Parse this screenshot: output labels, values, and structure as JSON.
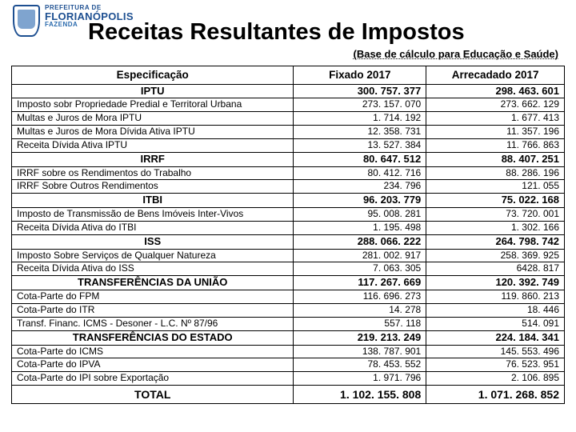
{
  "logo": {
    "line1": "PREFEITURA DE",
    "line2": "FLORIANÓPOLIS",
    "line3": "FAZENDA"
  },
  "title": "Receitas Resultantes de Impostos",
  "subtitle": "(Base de cálculo para Educação e Saúde)",
  "columns": [
    "Especificação",
    "Fixado 2017",
    "Arrecadado 2017"
  ],
  "rows": [
    {
      "t": "group",
      "desc": "IPTU",
      "v1": "300. 757. 377",
      "v2": "298. 463. 601"
    },
    {
      "t": "detail",
      "desc": "Imposto sobr Propriedade Predial e Territoral Urbana",
      "v1": "273. 157. 070",
      "v2": "273. 662. 129"
    },
    {
      "t": "detail",
      "desc": "Multas e Juros de Mora IPTU",
      "v1": "1. 714. 192",
      "v2": "1. 677. 413"
    },
    {
      "t": "detail",
      "desc": "Multas e Juros de Mora Dívida Ativa IPTU",
      "v1": "12. 358. 731",
      "v2": "11. 357. 196"
    },
    {
      "t": "detail",
      "desc": "Receita Dívida Ativa IPTU",
      "v1": "13. 527. 384",
      "v2": "11. 766. 863"
    },
    {
      "t": "group",
      "desc": "IRRF",
      "v1": "80. 647. 512",
      "v2": "88. 407. 251"
    },
    {
      "t": "detail",
      "desc": "IRRF sobre os Rendimentos do Trabalho",
      "v1": "80. 412. 716",
      "v2": "88. 286. 196"
    },
    {
      "t": "detail",
      "desc": "IRRF Sobre Outros Rendimentos",
      "v1": "234. 796",
      "v2": "121. 055"
    },
    {
      "t": "group",
      "desc": "ITBI",
      "v1": "96. 203. 779",
      "v2": "75. 022. 168"
    },
    {
      "t": "detail",
      "desc": "Imposto de Transmissão de Bens Imóveis Inter-Vivos",
      "v1": "95. 008. 281",
      "v2": "73. 720. 001"
    },
    {
      "t": "detail",
      "desc": "Receita Dívida Ativa do ITBI",
      "v1": "1. 195. 498",
      "v2": "1. 302. 166"
    },
    {
      "t": "group",
      "desc": "ISS",
      "v1": "288. 066. 222",
      "v2": "264. 798. 742"
    },
    {
      "t": "detail",
      "desc": "Imposto Sobre Serviços de Qualquer Natureza",
      "v1": "281. 002. 917",
      "v2": "258. 369. 925"
    },
    {
      "t": "detail",
      "desc": "Receita Dívida Ativa do ISS",
      "v1": "7. 063. 305",
      "v2": "6428. 817"
    },
    {
      "t": "group",
      "desc": "TRANSFERÊNCIAS DA UNIÃO",
      "v1": "117. 267. 669",
      "v2": "120. 392. 749"
    },
    {
      "t": "detail",
      "desc": "Cota-Parte do FPM",
      "v1": "116. 696. 273",
      "v2": "119. 860. 213"
    },
    {
      "t": "detail",
      "desc": "Cota-Parte do ITR",
      "v1": "14. 278",
      "v2": "18. 446"
    },
    {
      "t": "detail",
      "desc": "Transf. Financ. ICMS - Desoner - L.C. Nº 87/96",
      "v1": "557. 118",
      "v2": "514. 091"
    },
    {
      "t": "group",
      "desc": "TRANSFERÊNCIAS DO ESTADO",
      "v1": "219. 213. 249",
      "v2": "224. 184. 341"
    },
    {
      "t": "detail",
      "desc": "Cota-Parte do ICMS",
      "v1": "138. 787. 901",
      "v2": "145. 553. 496"
    },
    {
      "t": "detail",
      "desc": "Cota-Parte do IPVA",
      "v1": "78. 453. 552",
      "v2": "76. 523. 951"
    },
    {
      "t": "detail",
      "desc": "Cota-Parte do IPI sobre Exportação",
      "v1": "1. 971. 796",
      "v2": "2. 106. 895"
    },
    {
      "t": "total",
      "desc": "TOTAL",
      "v1": "1. 102. 155. 808",
      "v2": "1. 071. 268. 852"
    }
  ],
  "style": {
    "title_fontsize": 29,
    "subtitle_fontsize": 13,
    "header_fontsize": 13.5,
    "detail_fontsize": 12,
    "group_fontsize": 13,
    "total_fontsize": 14,
    "border_color": "#000000",
    "text_color": "#000000",
    "brand_color": "#1d4f91",
    "background_color": "#ffffff",
    "col_widths_pct": [
      51,
      24,
      25
    ]
  }
}
